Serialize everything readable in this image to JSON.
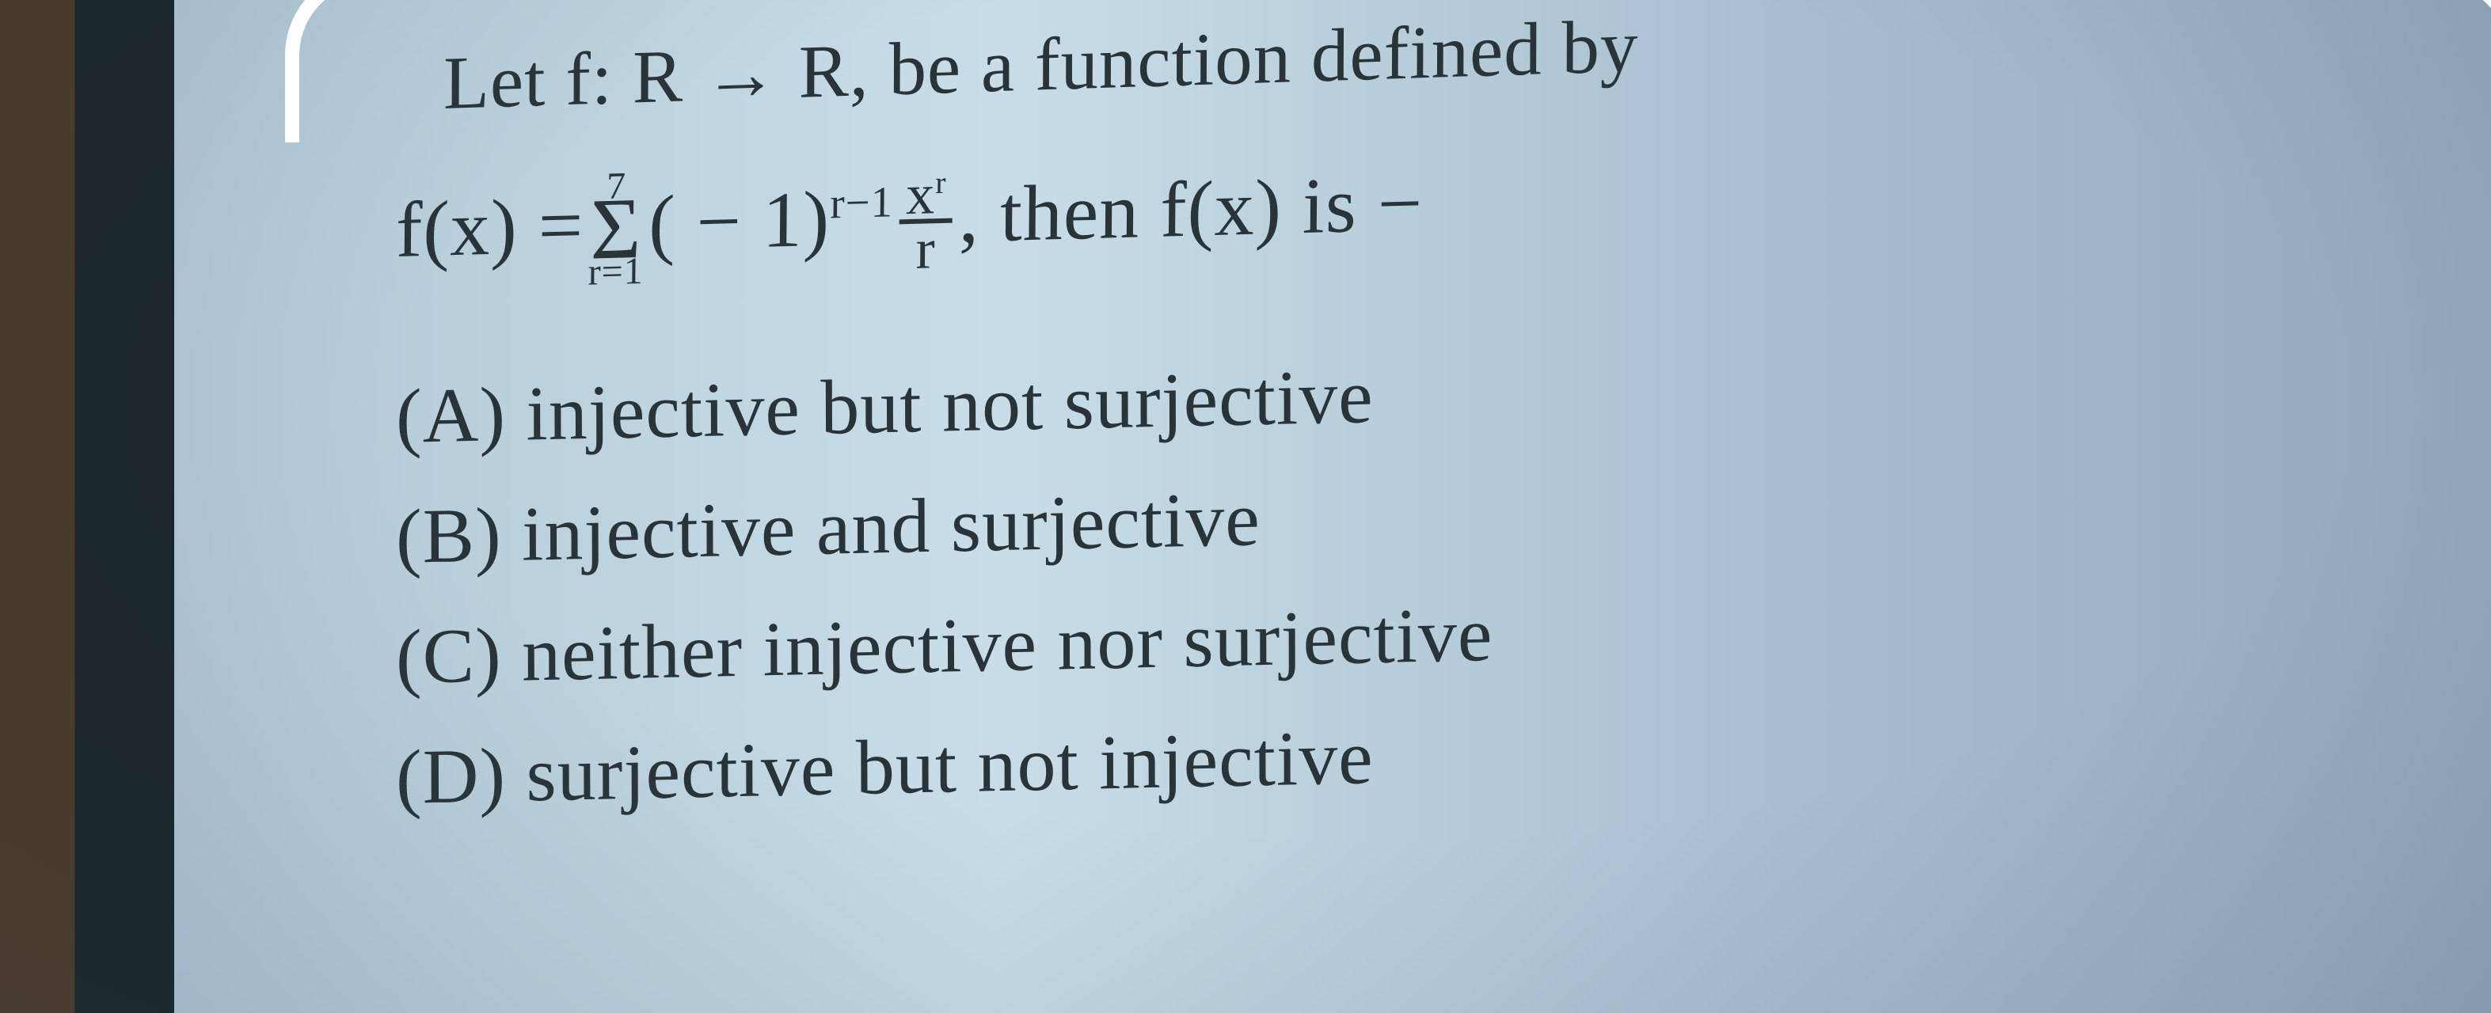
{
  "question": {
    "prompt_line1": "Let f: R → R, be a function defined by",
    "formula": {
      "lhs": "f(x) = ",
      "sigma_upper": "7",
      "sigma_lower": "r=1",
      "term_base": "( − 1)",
      "term_exp": "r−1",
      "frac_num_base": "x",
      "frac_num_exp": "r",
      "frac_den": "r",
      "tail": ", then f(x) is −"
    },
    "options": {
      "A": {
        "label": "(A)",
        "text": "injective but not surjective"
      },
      "B": {
        "label": "(B)",
        "text": "injective and surjective"
      },
      "C": {
        "label": "(C)",
        "text": "neither injective nor surjective"
      },
      "D": {
        "label": "(D)",
        "text": "surjective but not injective"
      }
    }
  },
  "style": {
    "text_color": "#2a3438",
    "background_gradient": [
      "#b0c8d6",
      "#c8dde8",
      "#a8c0d0",
      "#90a8b8"
    ],
    "left_strip_colors": [
      "#4a3a28",
      "#1a2428"
    ],
    "corner_bracket_color": "#ffffff",
    "font_family": "Times New Roman, serif",
    "base_fontsize_pt": 72,
    "rotation_deg": -1.5
  }
}
